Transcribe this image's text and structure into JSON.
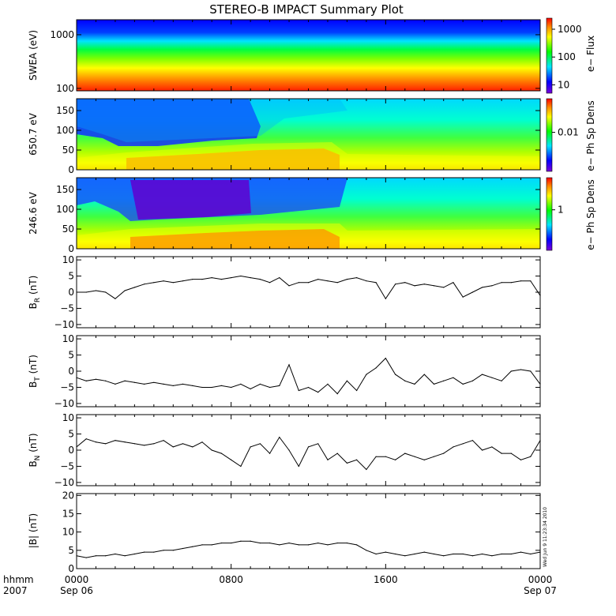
{
  "title": "STEREO-B IMPACT Summary Plot",
  "stamp": "Wed Jun  9 11:23:34 2010",
  "time_axis": {
    "corner_labels": [
      "hhmm",
      "2007"
    ],
    "ticks": [
      {
        "hhmm": "0000",
        "date": "Sep 06"
      },
      {
        "hhmm": "0800",
        "date": ""
      },
      {
        "hhmm": "1600",
        "date": ""
      },
      {
        "hhmm": "0000",
        "date": "Sep 07"
      }
    ],
    "range_hours": [
      0,
      24
    ]
  },
  "colors": {
    "line": "#000000",
    "background": "#ffffff"
  },
  "chart_data": [
    {
      "type": "heatmap",
      "ylabel": "SWEA (eV)",
      "yscale": "log",
      "ylim": [
        90,
        1900
      ],
      "yticks": [
        "1000",
        "100"
      ],
      "yticks_values": [
        1000,
        100
      ],
      "colorbar": {
        "label": "e− Flux",
        "ticks": [
          "1000",
          "100",
          "10"
        ],
        "tick_values": [
          1000,
          100,
          10
        ]
      }
    },
    {
      "type": "heatmap",
      "ylabel": "650.7 eV",
      "ylim": [
        0,
        180
      ],
      "yticks": [
        "150",
        "100",
        "50",
        "0"
      ],
      "yticks_values": [
        150,
        100,
        50,
        0
      ],
      "colorbar": {
        "label": "e− Ph Sp Dens",
        "ticks": [
          "0.01"
        ],
        "tick_values": [
          0.01
        ]
      }
    },
    {
      "type": "heatmap",
      "ylabel": "246.6 eV",
      "ylim": [
        0,
        180
      ],
      "yticks": [
        "150",
        "100",
        "50",
        "0"
      ],
      "yticks_values": [
        150,
        100,
        50,
        0
      ],
      "colorbar": {
        "label": "e− Ph Sp Dens",
        "ticks": [
          "1"
        ],
        "tick_values": [
          1
        ]
      }
    },
    {
      "type": "line",
      "ylabel": "B",
      "ysub": "R",
      "yunit": "(nT)",
      "ylim": [
        -11,
        11
      ],
      "yticks": [
        "10",
        "5",
        "0",
        "−5",
        "−10"
      ],
      "yticks_values": [
        10,
        5,
        0,
        -5,
        -10
      ],
      "x": [
        0,
        0.5,
        1,
        1.5,
        2,
        2.5,
        3,
        3.5,
        4,
        4.5,
        5,
        5.5,
        6,
        6.5,
        7,
        7.5,
        8,
        8.5,
        9,
        9.5,
        10,
        10.5,
        11,
        11.5,
        12,
        12.5,
        13,
        13.5,
        14,
        14.5,
        15,
        15.5,
        16,
        16.5,
        17,
        17.5,
        18,
        18.5,
        19,
        19.5,
        20,
        20.5,
        21,
        21.5,
        22,
        22.5,
        23,
        23.5,
        24
      ],
      "values": [
        0,
        0,
        0.5,
        0,
        -2,
        0.5,
        1.5,
        2.5,
        3,
        3.5,
        3,
        3.5,
        4,
        4,
        4.5,
        4,
        4.5,
        5,
        4.5,
        4,
        3,
        4.5,
        2,
        3,
        3,
        4,
        3.5,
        3,
        4,
        4.5,
        3.5,
        3,
        -2,
        2.5,
        3,
        2,
        2.5,
        2,
        1.5,
        3,
        -1.5,
        0,
        1.5,
        2,
        3,
        3,
        3.5,
        3.5,
        -1
      ]
    },
    {
      "type": "line",
      "ylabel": "B",
      "ysub": "T",
      "yunit": "(nT)",
      "ylim": [
        -11,
        11
      ],
      "yticks": [
        "10",
        "5",
        "0",
        "−5",
        "−10"
      ],
      "yticks_values": [
        10,
        5,
        0,
        -5,
        -10
      ],
      "x": [
        0,
        0.5,
        1,
        1.5,
        2,
        2.5,
        3,
        3.5,
        4,
        4.5,
        5,
        5.5,
        6,
        6.5,
        7,
        7.5,
        8,
        8.5,
        9,
        9.5,
        10,
        10.5,
        11,
        11.5,
        12,
        12.5,
        13,
        13.5,
        14,
        14.5,
        15,
        15.5,
        16,
        16.5,
        17,
        17.5,
        18,
        18.5,
        19,
        19.5,
        20,
        20.5,
        21,
        21.5,
        22,
        22.5,
        23,
        23.5,
        24
      ],
      "values": [
        -2,
        -3,
        -2.5,
        -3,
        -4,
        -3,
        -3.5,
        -4,
        -3.5,
        -4,
        -4.5,
        -4,
        -4.5,
        -5,
        -5,
        -4.5,
        -5,
        -4,
        -5.5,
        -4,
        -5,
        -4.5,
        2,
        -6,
        -5,
        -6.5,
        -4,
        -7,
        -3,
        -6,
        -1,
        1,
        4,
        -1,
        -3,
        -4,
        -1,
        -4,
        -3,
        -2,
        -4,
        -3,
        -1,
        -2,
        -3,
        0,
        0.5,
        0,
        -4
      ]
    },
    {
      "type": "line",
      "ylabel": "B",
      "ysub": "N",
      "yunit": "(nT)",
      "ylim": [
        -11,
        11
      ],
      "yticks": [
        "10",
        "5",
        "0",
        "−5",
        "−10"
      ],
      "yticks_values": [
        10,
        5,
        0,
        -5,
        -10
      ],
      "x": [
        0,
        0.5,
        1,
        1.5,
        2,
        2.5,
        3,
        3.5,
        4,
        4.5,
        5,
        5.5,
        6,
        6.5,
        7,
        7.5,
        8,
        8.5,
        9,
        9.5,
        10,
        10.5,
        11,
        11.5,
        12,
        12.5,
        13,
        13.5,
        14,
        14.5,
        15,
        15.5,
        16,
        16.5,
        17,
        17.5,
        18,
        18.5,
        19,
        19.5,
        20,
        20.5,
        21,
        21.5,
        22,
        22.5,
        23,
        23.5,
        24
      ],
      "values": [
        1,
        3.5,
        2.5,
        2,
        3,
        2.5,
        2,
        1.5,
        2,
        3,
        1,
        2,
        1,
        2.5,
        0,
        -1,
        -3,
        -5,
        1,
        2,
        -1,
        4,
        0,
        -5,
        1,
        2,
        -3,
        -1,
        -4,
        -3,
        -6,
        -2,
        -2,
        -3,
        -1,
        -2,
        -3,
        -2,
        -1,
        1,
        2,
        3,
        0,
        1,
        -1,
        -1,
        -3,
        -2,
        3
      ]
    },
    {
      "type": "line",
      "ylabel": "|B|",
      "ysub": "",
      "yunit": "(nT)",
      "ylim": [
        0,
        20.5
      ],
      "yticks": [
        "20",
        "15",
        "10",
        "5",
        "0"
      ],
      "yticks_values": [
        20,
        15,
        10,
        5,
        0
      ],
      "x": [
        0,
        0.5,
        1,
        1.5,
        2,
        2.5,
        3,
        3.5,
        4,
        4.5,
        5,
        5.5,
        6,
        6.5,
        7,
        7.5,
        8,
        8.5,
        9,
        9.5,
        10,
        10.5,
        11,
        11.5,
        12,
        12.5,
        13,
        13.5,
        14,
        14.5,
        15,
        15.5,
        16,
        16.5,
        17,
        17.5,
        18,
        18.5,
        19,
        19.5,
        20,
        20.5,
        21,
        21.5,
        22,
        22.5,
        23,
        23.5,
        24
      ],
      "values": [
        3.5,
        3,
        3.5,
        3.5,
        4,
        3.5,
        4,
        4.5,
        4.5,
        5,
        5,
        5.5,
        6,
        6.5,
        6.5,
        7,
        7,
        7.5,
        7.5,
        7,
        7,
        6.5,
        7,
        6.5,
        6.5,
        7,
        6.5,
        7,
        7,
        6.5,
        5,
        4,
        4.5,
        4,
        3.5,
        4,
        4.5,
        4,
        3.5,
        4,
        4,
        3.5,
        4,
        3.5,
        4,
        4,
        4.5,
        4,
        4.5
      ]
    }
  ]
}
